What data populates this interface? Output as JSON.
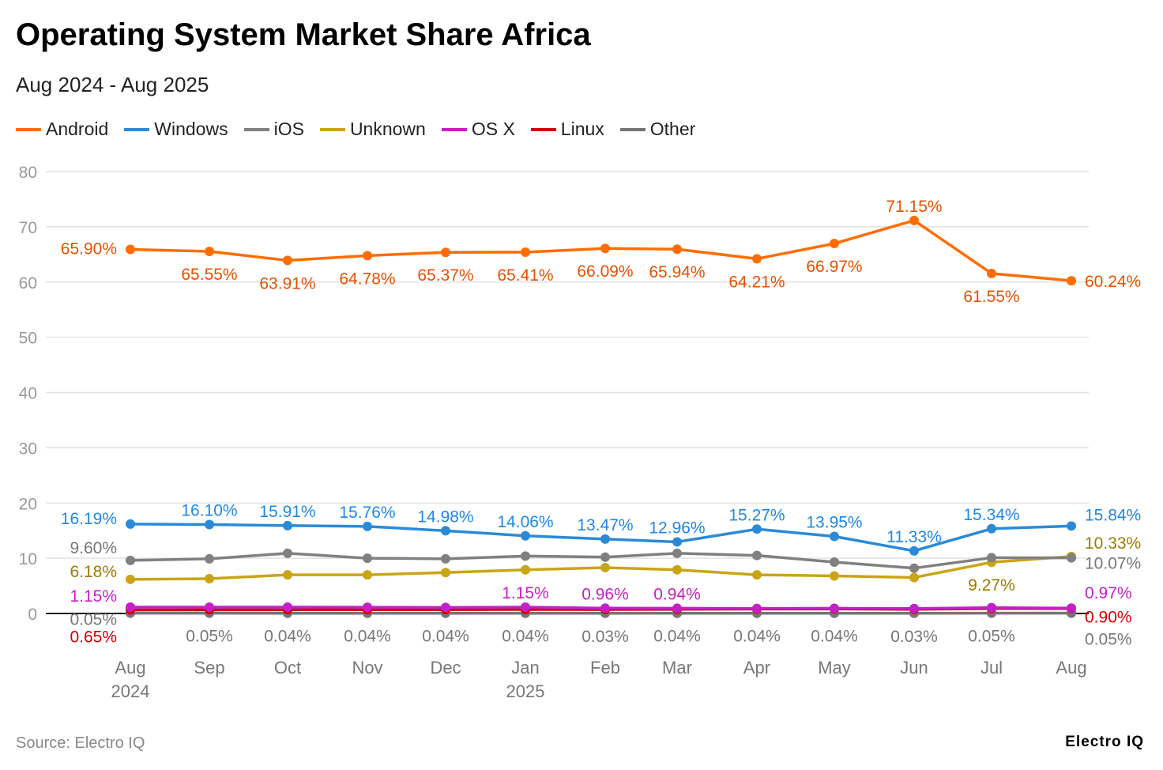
{
  "title": "Operating System Market Share Africa",
  "subtitle": "Aug 2024 - Aug 2025",
  "source": "Source: Electro IQ",
  "brand": "Electro IQ",
  "chart_data": {
    "type": "line",
    "title": "Operating System Market Share Africa",
    "subtitle": "Aug 2024 - Aug 2025",
    "ylim": [
      0,
      80
    ],
    "yticks": [
      0,
      10,
      20,
      30,
      40,
      50,
      60,
      70,
      80
    ],
    "grid": true,
    "legend": "top-left",
    "categories": [
      "Aug 2024",
      "Sep",
      "Oct",
      "Nov",
      "Dec",
      "Jan 2025",
      "Feb",
      "Mar",
      "Apr",
      "May",
      "Jun",
      "Jul",
      "Aug"
    ],
    "tick_labels": [
      [
        "Aug",
        "2024"
      ],
      [
        "Sep"
      ],
      [
        "Oct"
      ],
      [
        "Nov"
      ],
      [
        "Dec"
      ],
      [
        "Jan",
        "2025"
      ],
      [
        "Feb"
      ],
      [
        "Mar"
      ],
      [
        "Apr"
      ],
      [
        "May"
      ],
      [
        "Jun"
      ],
      [
        "Jul"
      ],
      [
        "Aug"
      ]
    ],
    "series": [
      {
        "name": "Android",
        "color": "#ff6d00",
        "label_color": "#e65100",
        "values": [
          65.9,
          65.55,
          63.91,
          64.78,
          65.37,
          65.41,
          66.09,
          65.94,
          64.21,
          66.97,
          71.15,
          61.55,
          60.24
        ],
        "labels": [
          "65.90%",
          "65.55%",
          "63.91%",
          "64.78%",
          "65.37%",
          "65.41%",
          "66.09%",
          "65.94%",
          "64.21%",
          "66.97%",
          "71.15%",
          "61.55%",
          "60.24%"
        ]
      },
      {
        "name": "Windows",
        "color": "#2b8ad8",
        "label_color": "#1e88e5",
        "values": [
          16.19,
          16.1,
          15.91,
          15.76,
          14.98,
          14.06,
          13.47,
          12.96,
          15.27,
          13.95,
          11.33,
          15.34,
          15.84
        ],
        "labels": [
          "16.19%",
          "16.10%",
          "15.91%",
          "15.76%",
          "14.98%",
          "14.06%",
          "13.47%",
          "12.96%",
          "15.27%",
          "13.95%",
          "11.33%",
          "15.34%",
          "15.84%"
        ]
      },
      {
        "name": "iOS",
        "color": "#808080",
        "label_color": "#777777",
        "values": [
          9.6,
          9.9,
          10.9,
          10.0,
          9.9,
          10.4,
          10.2,
          10.9,
          10.5,
          9.3,
          8.2,
          10.1,
          10.07
        ],
        "labels": [
          "9.60%",
          null,
          null,
          null,
          null,
          null,
          null,
          null,
          null,
          null,
          null,
          null,
          "10.07%"
        ]
      },
      {
        "name": "Unknown",
        "color": "#c9a516",
        "label_color": "#9a7b00",
        "values": [
          6.18,
          6.3,
          7.0,
          7.0,
          7.4,
          7.9,
          8.3,
          7.9,
          7.0,
          6.8,
          6.5,
          9.27,
          10.33
        ],
        "labels": [
          "6.18%",
          null,
          null,
          null,
          null,
          null,
          null,
          null,
          null,
          null,
          null,
          "9.27%",
          "10.33%"
        ]
      },
      {
        "name": "OS X",
        "color": "#c61fc6",
        "label_color": "#c61fc6",
        "values": [
          1.15,
          1.15,
          1.15,
          1.12,
          1.1,
          1.15,
          0.96,
          0.94,
          0.92,
          0.93,
          0.9,
          1.05,
          0.97
        ],
        "labels": [
          "1.15%",
          null,
          null,
          null,
          null,
          "1.15%",
          "0.96%",
          "0.94%",
          null,
          null,
          null,
          null,
          "0.97%"
        ]
      },
      {
        "name": "Linux",
        "color": "#d50000",
        "label_color": "#d50000",
        "values": [
          0.65,
          0.66,
          0.67,
          0.68,
          0.7,
          0.72,
          0.72,
          0.75,
          0.8,
          0.82,
          0.75,
          0.9,
          0.9
        ],
        "labels": [
          "0.65%",
          null,
          null,
          null,
          null,
          null,
          null,
          null,
          null,
          null,
          null,
          null,
          "0.90%"
        ]
      },
      {
        "name": "Other",
        "color": "#757575",
        "label_color": "#777777",
        "values": [
          0.05,
          0.05,
          0.04,
          0.04,
          0.04,
          0.04,
          0.03,
          0.04,
          0.04,
          0.04,
          0.03,
          0.05,
          0.05
        ],
        "labels": [
          "0.05%",
          "0.05%",
          "0.04%",
          "0.04%",
          "0.04%",
          "0.04%",
          "0.03%",
          "0.04%",
          "0.04%",
          "0.04%",
          "0.03%",
          "0.05%",
          "0.05%"
        ]
      }
    ]
  }
}
